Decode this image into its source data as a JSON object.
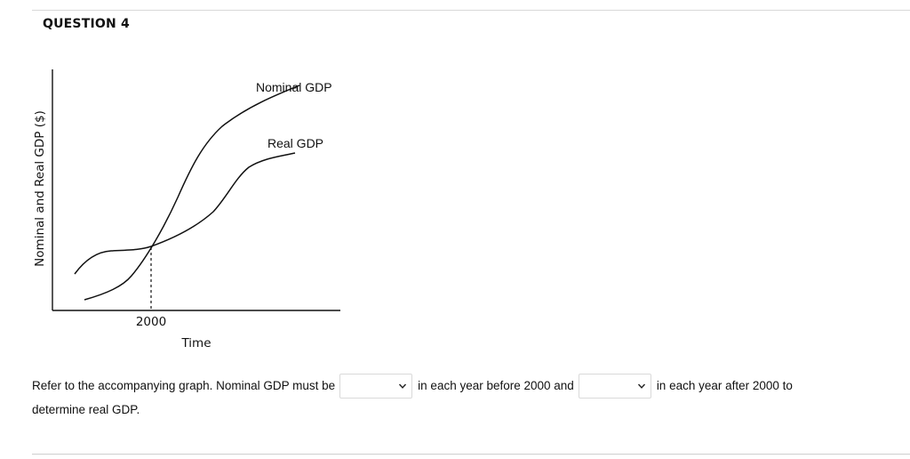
{
  "question": {
    "title": "QUESTION 4"
  },
  "graph": {
    "y_axis_label": "Nominal and Real GDP ($)",
    "x_axis_label": "Time",
    "x_tick_label": "2000",
    "curves": [
      {
        "label": "Nominal GDP"
      },
      {
        "label": "Real GDP"
      }
    ]
  },
  "prompt": {
    "part1": "Refer to the accompanying graph. Nominal GDP must be",
    "part2": "in each year before 2000 and",
    "part3": "in each year after 2000 to",
    "part4": "determine real GDP.",
    "dropdown_1_value": "",
    "dropdown_2_value": ""
  },
  "icons": {
    "dropdown": "chevron-down-icon"
  }
}
